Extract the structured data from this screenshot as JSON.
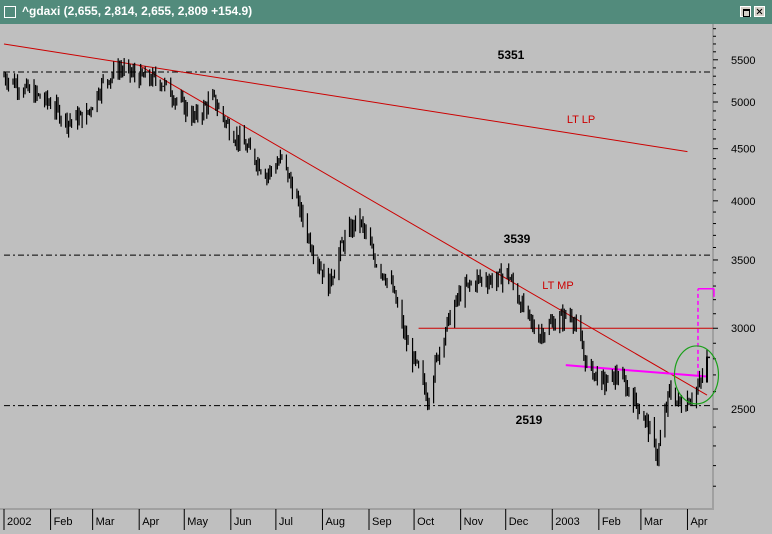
{
  "window": {
    "title": "^gdaxi (2,655, 2,814, 2,655, 2,809 +154.9)",
    "max_icon": "maximize-icon",
    "close_icon": "close-icon"
  },
  "chart_data": {
    "type": "ohlc-bar",
    "yscale": "log",
    "ylim": [
      1950,
      6000
    ],
    "y_ticks": [
      2500,
      3000,
      3500,
      4000,
      4500,
      5000,
      5500
    ],
    "x_ticks": [
      "2002",
      "Feb",
      "Mar",
      "Apr",
      "May",
      "Jun",
      "Jul",
      "Aug",
      "Sep",
      "Oct",
      "Nov",
      "Dec",
      "2003",
      "Feb",
      "Mar",
      "Apr"
    ],
    "x_tick_dates": [
      "2002-01-01",
      "2002-02-01",
      "2002-03-01",
      "2002-04-01",
      "2002-05-01",
      "2002-06-01",
      "2002-07-01",
      "2002-08-01",
      "2002-09-01",
      "2002-10-01",
      "2002-11-01",
      "2002-12-01",
      "2003-01-01",
      "2003-02-01",
      "2003-03-01",
      "2003-04-01"
    ],
    "xlim": [
      "2002-01-01",
      "2003-04-18"
    ],
    "grid": false,
    "annotations": [
      {
        "text": "5351"
      },
      {
        "text": "3539"
      },
      {
        "text": "2519"
      },
      {
        "text": "LT LP"
      },
      {
        "text": "LT MP"
      }
    ],
    "hlines": [
      {
        "value": 5351,
        "style": "dash-dot",
        "color": "#000000"
      },
      {
        "value": 3539,
        "style": "dash-dot",
        "color": "#000000"
      },
      {
        "value": 2519,
        "style": "dash-dot",
        "color": "#000000"
      },
      {
        "value": 3000,
        "from": "2002-10-04",
        "style": "solid",
        "color": "#cc0000"
      }
    ],
    "trendlines": [
      {
        "name": "LT LP",
        "color": "#cc0000",
        "points": [
          [
            "2002-01-01",
            5700
          ],
          [
            "2003-04-01",
            4470
          ]
        ]
      },
      {
        "name": "LT MP",
        "color": "#cc0000",
        "points": [
          [
            "2002-04-01",
            5430
          ],
          [
            "2003-04-14",
            2580
          ]
        ]
      },
      {
        "color": "#ff00ff",
        "points": [
          [
            "2003-01-10",
            2760
          ],
          [
            "2003-04-14",
            2690
          ]
        ]
      }
    ],
    "close_series": [
      [
        "2002-01-01",
        5300
      ],
      [
        "2002-01-15",
        5150
      ],
      [
        "2002-02-01",
        4980
      ],
      [
        "2002-02-12",
        4790
      ],
      [
        "2002-02-25",
        4850
      ],
      [
        "2002-03-07",
        5200
      ],
      [
        "2002-03-18",
        5400
      ],
      [
        "2002-04-01",
        5290
      ],
      [
        "2002-04-15",
        5250
      ],
      [
        "2002-04-25",
        5050
      ],
      [
        "2002-05-08",
        4820
      ],
      [
        "2002-05-20",
        5040
      ],
      [
        "2002-06-01",
        4680
      ],
      [
        "2002-06-12",
        4500
      ],
      [
        "2002-06-25",
        4250
      ],
      [
        "2002-07-05",
        4400
      ],
      [
        "2002-07-15",
        4000
      ],
      [
        "2002-07-25",
        3600
      ],
      [
        "2002-08-05",
        3300
      ],
      [
        "2002-08-15",
        3650
      ],
      [
        "2002-08-25",
        3850
      ],
      [
        "2002-09-05",
        3500
      ],
      [
        "2002-09-16",
        3300
      ],
      [
        "2002-09-26",
        2900
      ],
      [
        "2002-10-07",
        2650
      ],
      [
        "2002-10-10",
        2560
      ],
      [
        "2002-10-20",
        2950
      ],
      [
        "2002-11-01",
        3250
      ],
      [
        "2002-11-12",
        3350
      ],
      [
        "2002-11-25",
        3350
      ],
      [
        "2002-12-02",
        3400
      ],
      [
        "2002-12-12",
        3150
      ],
      [
        "2002-12-22",
        2950
      ],
      [
        "2003-01-03",
        3050
      ],
      [
        "2003-01-14",
        3100
      ],
      [
        "2003-01-24",
        2760
      ],
      [
        "2003-02-04",
        2650
      ],
      [
        "2003-02-14",
        2700
      ],
      [
        "2003-02-25",
        2550
      ],
      [
        "2003-03-05",
        2420
      ],
      [
        "2003-03-12",
        2250
      ],
      [
        "2003-03-20",
        2600
      ],
      [
        "2003-03-28",
        2520
      ],
      [
        "2003-04-04",
        2580
      ],
      [
        "2003-04-10",
        2655
      ],
      [
        "2003-04-14",
        2809
      ]
    ],
    "last_bar": {
      "open": 2655,
      "high": 2814,
      "low": 2655,
      "close": 2809
    }
  }
}
